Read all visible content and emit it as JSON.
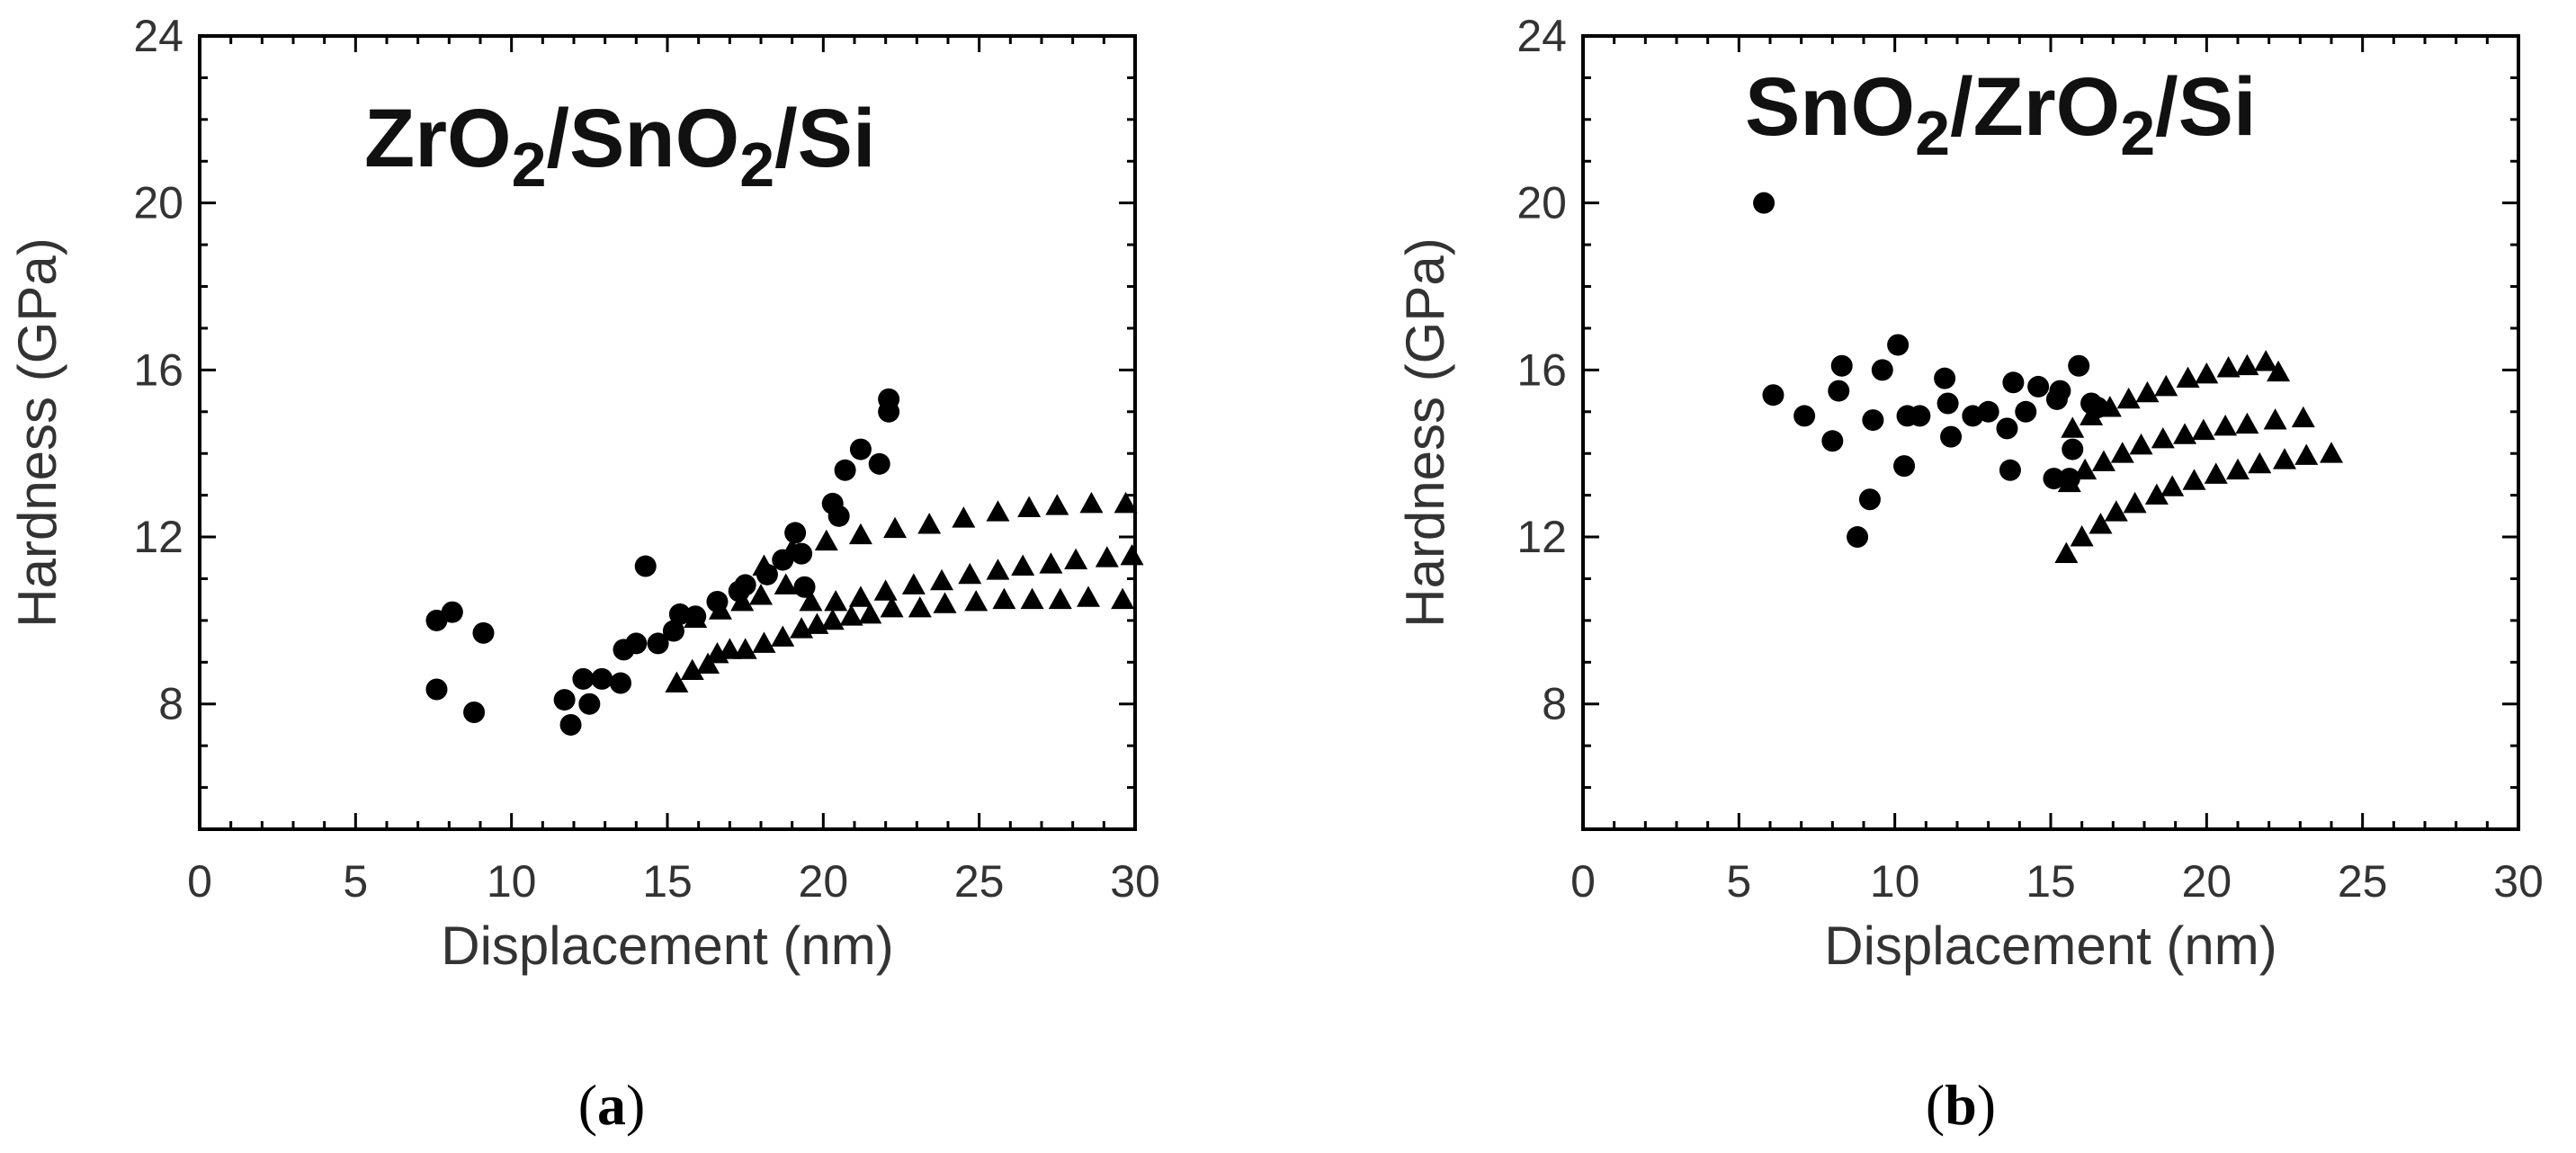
{
  "chart_data": [
    {
      "panel": "(a)",
      "panel_label": {
        "open": "(",
        "letter": "a",
        "close": ")"
      },
      "type": "scatter",
      "title": {
        "parts": [
          "ZrO",
          "2",
          "/SnO",
          "2",
          "/Si"
        ]
      },
      "xlabel": "Displacement (nm)",
      "ylabel": "Hardness (GPa)",
      "xlim": [
        0,
        30
      ],
      "ylim": [
        5,
        24
      ],
      "xticks": [
        0,
        5,
        10,
        15,
        20,
        25,
        30
      ],
      "yticks": [
        8,
        12,
        16,
        20,
        24
      ],
      "series": [
        {
          "name": "circles",
          "marker": "circle",
          "points": [
            [
              7.6,
              10.0
            ],
            [
              8.1,
              10.2
            ],
            [
              9.1,
              9.7
            ],
            [
              7.6,
              8.35
            ],
            [
              8.8,
              7.8
            ],
            [
              11.7,
              8.1
            ],
            [
              11.9,
              7.5
            ],
            [
              12.3,
              8.6
            ],
            [
              12.5,
              8.0
            ],
            [
              12.9,
              8.6
            ],
            [
              13.5,
              8.5
            ],
            [
              13.6,
              9.3
            ],
            [
              14.0,
              9.45
            ],
            [
              14.3,
              11.3
            ],
            [
              14.7,
              9.45
            ],
            [
              15.2,
              9.75
            ],
            [
              15.4,
              10.15
            ],
            [
              15.9,
              10.1
            ],
            [
              16.6,
              10.45
            ],
            [
              17.3,
              10.7
            ],
            [
              17.5,
              10.85
            ],
            [
              18.2,
              11.1
            ],
            [
              18.7,
              11.45
            ],
            [
              19.1,
              12.1
            ],
            [
              19.3,
              11.6
            ],
            [
              19.4,
              10.8
            ],
            [
              20.3,
              12.8
            ],
            [
              20.5,
              12.5
            ],
            [
              20.7,
              13.6
            ],
            [
              21.2,
              14.1
            ],
            [
              21.8,
              13.75
            ],
            [
              22.1,
              15.3
            ],
            [
              22.1,
              15.0
            ]
          ]
        },
        {
          "name": "triangles",
          "marker": "triangle",
          "points": [
            [
              15.3,
              8.5
            ],
            [
              15.8,
              8.8
            ],
            [
              16.3,
              8.95
            ],
            [
              16.6,
              9.2
            ],
            [
              17.0,
              9.3
            ],
            [
              17.5,
              9.3
            ],
            [
              18.1,
              9.45
            ],
            [
              18.7,
              9.6
            ],
            [
              19.3,
              9.8
            ],
            [
              19.8,
              9.9
            ],
            [
              20.3,
              10.0
            ],
            [
              20.9,
              10.1
            ],
            [
              21.5,
              10.15
            ],
            [
              22.2,
              10.3
            ],
            [
              23.1,
              10.3
            ],
            [
              23.9,
              10.4
            ],
            [
              24.9,
              10.45
            ],
            [
              25.8,
              10.5
            ],
            [
              26.7,
              10.5
            ],
            [
              27.6,
              10.5
            ],
            [
              28.5,
              10.55
            ],
            [
              29.6,
              10.5
            ],
            [
              15.9,
              10.05
            ],
            [
              16.7,
              10.25
            ],
            [
              17.4,
              10.45
            ],
            [
              18.0,
              10.6
            ],
            [
              18.8,
              10.85
            ],
            [
              19.6,
              10.45
            ],
            [
              20.4,
              10.45
            ],
            [
              21.2,
              10.55
            ],
            [
              22.0,
              10.7
            ],
            [
              22.9,
              10.85
            ],
            [
              23.8,
              10.95
            ],
            [
              24.7,
              11.1
            ],
            [
              25.6,
              11.2
            ],
            [
              26.4,
              11.3
            ],
            [
              27.3,
              11.35
            ],
            [
              28.1,
              11.45
            ],
            [
              29.1,
              11.5
            ],
            [
              29.9,
              11.55
            ],
            [
              18.1,
              11.3
            ],
            [
              19.0,
              11.7
            ],
            [
              20.1,
              11.9
            ],
            [
              21.2,
              12.05
            ],
            [
              22.3,
              12.2
            ],
            [
              23.4,
              12.3
            ],
            [
              24.5,
              12.45
            ],
            [
              25.6,
              12.6
            ],
            [
              26.6,
              12.7
            ],
            [
              27.5,
              12.75
            ],
            [
              28.6,
              12.8
            ],
            [
              29.7,
              12.8
            ]
          ]
        }
      ]
    },
    {
      "panel": "(b)",
      "panel_label": {
        "open": "(",
        "letter": "b",
        "close": ")"
      },
      "type": "scatter",
      "title": {
        "parts": [
          "SnO",
          "2",
          "/ZrO",
          "2",
          "/Si"
        ]
      },
      "xlabel": "Displacement (nm)",
      "ylabel": "Hardness (GPa)",
      "xlim": [
        0,
        30
      ],
      "ylim": [
        5,
        24
      ],
      "xticks": [
        0,
        5,
        10,
        15,
        20,
        25,
        30
      ],
      "yticks": [
        8,
        12,
        16,
        20,
        24
      ],
      "series": [
        {
          "name": "circles",
          "marker": "circle",
          "points": [
            [
              5.8,
              20.0
            ],
            [
              6.1,
              15.4
            ],
            [
              7.1,
              14.9
            ],
            [
              8.0,
              14.3
            ],
            [
              8.2,
              15.5
            ],
            [
              8.3,
              16.1
            ],
            [
              8.8,
              12.0
            ],
            [
              9.2,
              12.9
            ],
            [
              9.3,
              14.8
            ],
            [
              9.6,
              16.0
            ],
            [
              10.1,
              16.6
            ],
            [
              10.3,
              13.7
            ],
            [
              10.4,
              14.9
            ],
            [
              10.8,
              14.9
            ],
            [
              11.6,
              15.8
            ],
            [
              11.7,
              15.2
            ],
            [
              11.8,
              14.4
            ],
            [
              12.5,
              14.9
            ],
            [
              13.0,
              15.0
            ],
            [
              13.6,
              14.6
            ],
            [
              13.7,
              13.6
            ],
            [
              13.8,
              15.7
            ],
            [
              14.2,
              15.0
            ],
            [
              14.6,
              15.6
            ],
            [
              15.1,
              13.4
            ],
            [
              15.2,
              15.3
            ],
            [
              15.3,
              15.5
            ],
            [
              15.6,
              13.4
            ],
            [
              15.9,
              16.1
            ],
            [
              16.3,
              15.2
            ],
            [
              16.5,
              15.1
            ],
            [
              15.7,
              14.1
            ]
          ]
        },
        {
          "name": "triangles",
          "marker": "triangle",
          "points": [
            [
              15.5,
              11.6
            ],
            [
              16.0,
              12.0
            ],
            [
              16.6,
              12.3
            ],
            [
              17.1,
              12.6
            ],
            [
              17.7,
              12.8
            ],
            [
              18.4,
              13.0
            ],
            [
              18.9,
              13.2
            ],
            [
              19.6,
              13.35
            ],
            [
              20.3,
              13.5
            ],
            [
              21.0,
              13.6
            ],
            [
              21.7,
              13.75
            ],
            [
              22.5,
              13.85
            ],
            [
              23.2,
              13.95
            ],
            [
              24.0,
              14.0
            ],
            [
              15.6,
              13.3
            ],
            [
              16.1,
              13.6
            ],
            [
              16.7,
              13.8
            ],
            [
              17.3,
              14.0
            ],
            [
              17.9,
              14.2
            ],
            [
              18.6,
              14.35
            ],
            [
              19.3,
              14.45
            ],
            [
              19.9,
              14.55
            ],
            [
              20.6,
              14.65
            ],
            [
              21.3,
              14.7
            ],
            [
              22.2,
              14.8
            ],
            [
              23.1,
              14.85
            ],
            [
              15.7,
              14.6
            ],
            [
              16.3,
              14.9
            ],
            [
              16.9,
              15.1
            ],
            [
              17.5,
              15.3
            ],
            [
              18.1,
              15.45
            ],
            [
              18.7,
              15.6
            ],
            [
              19.4,
              15.8
            ],
            [
              20.0,
              15.9
            ],
            [
              20.7,
              16.05
            ],
            [
              21.3,
              16.1
            ],
            [
              21.9,
              16.2
            ],
            [
              22.3,
              15.95
            ]
          ]
        }
      ]
    }
  ]
}
